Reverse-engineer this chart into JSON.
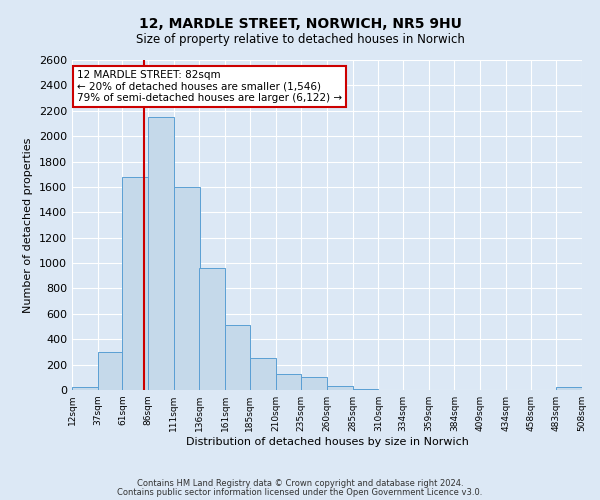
{
  "title": "12, MARDLE STREET, NORWICH, NR5 9HU",
  "subtitle": "Size of property relative to detached houses in Norwich",
  "xlabel": "Distribution of detached houses by size in Norwich",
  "ylabel": "Number of detached properties",
  "property_size": 82,
  "annotation_line1": "12 MARDLE STREET: 82sqm",
  "annotation_line2": "← 20% of detached houses are smaller (1,546)",
  "annotation_line3": "79% of semi-detached houses are larger (6,122) →",
  "bar_color": "#c5d9ea",
  "bar_edge_color": "#5a9fd4",
  "vline_color": "#cc0000",
  "annotation_box_edge_color": "#cc0000",
  "background_color": "#dce8f5",
  "plot_bg_color": "#dce8f5",
  "grid_color": "#ffffff",
  "ylim": [
    0,
    2600
  ],
  "bin_edges": [
    12,
    37,
    61,
    86,
    111,
    136,
    161,
    185,
    210,
    235,
    260,
    285,
    310,
    334,
    359,
    384,
    409,
    434,
    458,
    483,
    508
  ],
  "bin_labels": [
    "12sqm",
    "37sqm",
    "61sqm",
    "86sqm",
    "111sqm",
    "136sqm",
    "161sqm",
    "185sqm",
    "210sqm",
    "235sqm",
    "260sqm",
    "285sqm",
    "310sqm",
    "334sqm",
    "359sqm",
    "384sqm",
    "409sqm",
    "434sqm",
    "458sqm",
    "483sqm",
    "508sqm"
  ],
  "bar_heights": [
    25,
    300,
    1675,
    2150,
    1600,
    960,
    510,
    255,
    125,
    100,
    35,
    5,
    2,
    2,
    2,
    2,
    2,
    2,
    2,
    20
  ],
  "footer_line1": "Contains HM Land Registry data © Crown copyright and database right 2024.",
  "footer_line2": "Contains public sector information licensed under the Open Government Licence v3.0."
}
